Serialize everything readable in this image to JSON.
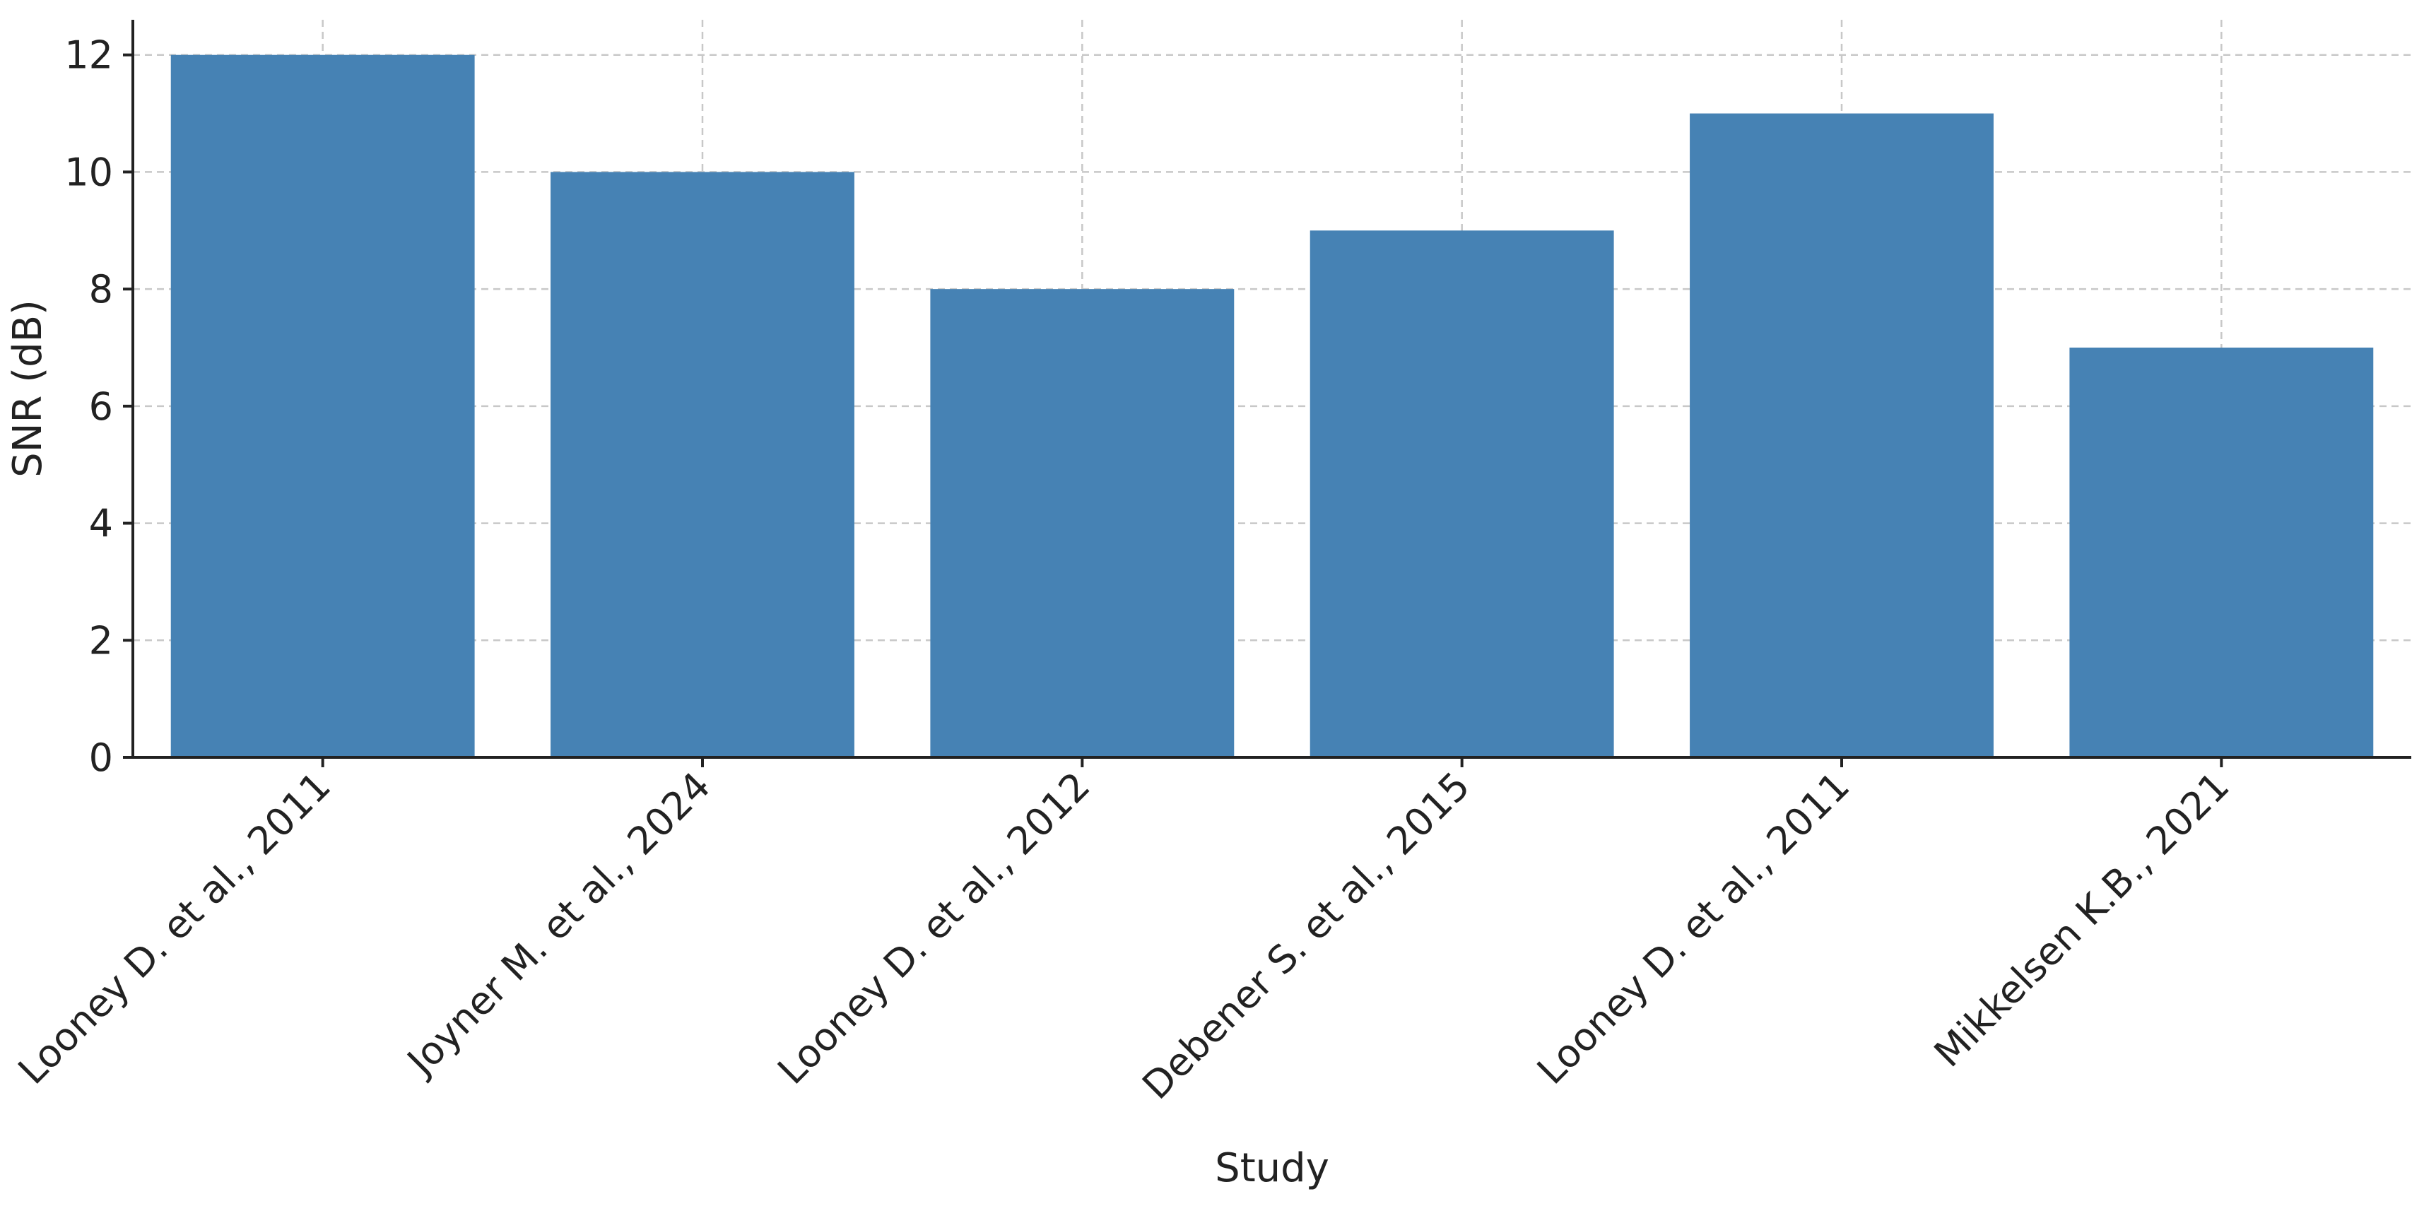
{
  "chart_data": {
    "type": "bar",
    "categories": [
      "Looney D. et al., 2011",
      "Joyner M. et al., 2024",
      "Looney D. et al., 2012",
      "Debener S. et al., 2015",
      "Looney D. et al., 2011",
      "Mikkelsen K.B., 2021"
    ],
    "values": [
      12,
      10,
      8,
      9,
      11,
      7
    ],
    "xlabel": "Study",
    "ylabel": "SNR (dB)",
    "ylim": [
      0,
      12.6
    ],
    "yticks": [
      0,
      2,
      4,
      6,
      8,
      10,
      12
    ],
    "bar_color": "#4682b4",
    "grid": true,
    "legend": "none"
  }
}
